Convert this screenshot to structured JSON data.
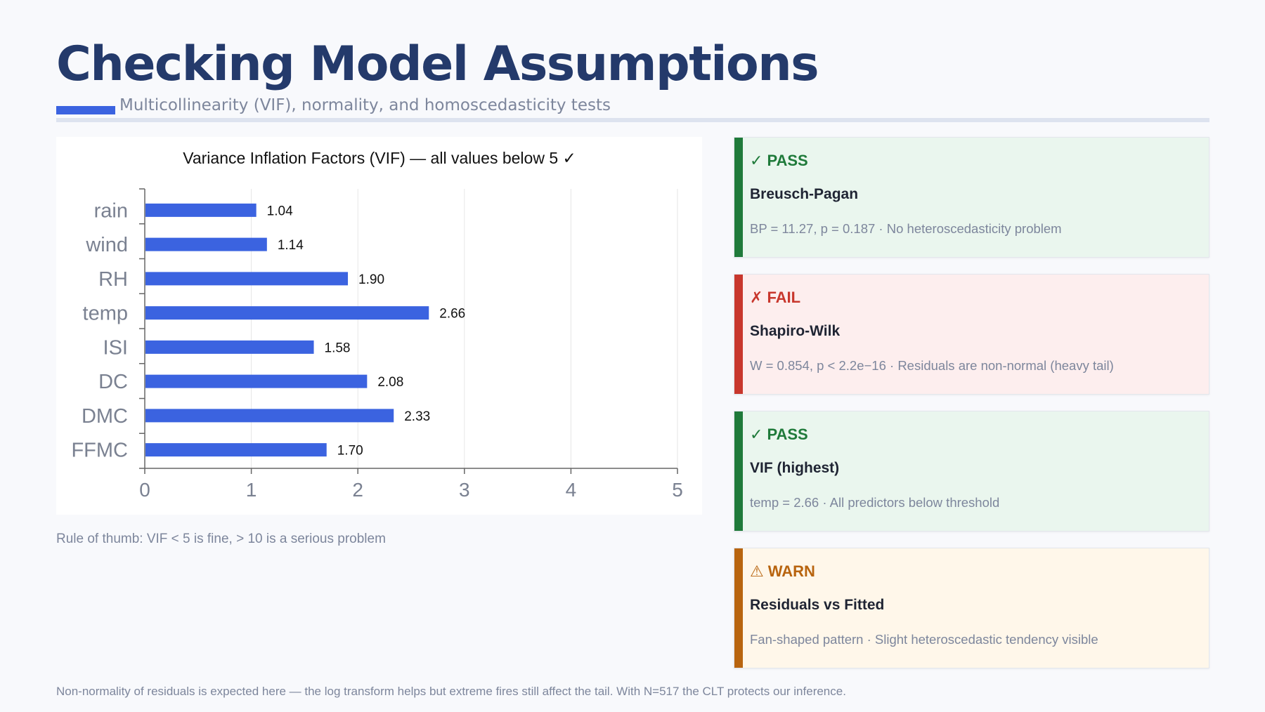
{
  "header": {
    "title": "Checking Model Assumptions",
    "subtitle": "Multicollinearity (VIF), normality, and homoscedasticity tests"
  },
  "chart_data": {
    "type": "bar",
    "orientation": "horizontal",
    "title": "Variance Inflation Factors (VIF) — all values below 5 ✓",
    "categories": [
      "rain",
      "wind",
      "RH",
      "temp",
      "ISI",
      "DC",
      "DMC",
      "FFMC"
    ],
    "values": [
      1.04,
      1.14,
      1.9,
      2.66,
      1.58,
      2.08,
      2.33,
      1.7
    ],
    "value_labels": [
      "1.04",
      "1.14",
      "1.90",
      "2.66",
      "1.58",
      "2.08",
      "2.33",
      "1.70"
    ],
    "xlim": [
      0,
      5
    ],
    "xticks": [
      "0",
      "1",
      "2",
      "3",
      "4",
      "5"
    ],
    "grid": "vertical",
    "bar_color": "#3b63e0"
  },
  "chart_note": "Rule of thumb: VIF < 5 is fine, > 10 is a serious problem",
  "checks": [
    {
      "symbol": "✓",
      "status": "PASS",
      "name": "Breusch-Pagan",
      "detail": "BP = 11.27, p = 0.187 · No heteroscedasticity problem",
      "accent": "#1f7a3a",
      "text_color": "#1f7a3a",
      "background": "#eaf6ee"
    },
    {
      "symbol": "✗",
      "status": "FAIL",
      "name": "Shapiro-Wilk",
      "detail": "W = 0.854, p < 2.2e−16 · Residuals are non-normal (heavy tail)",
      "accent": "#c8372d",
      "text_color": "#c8372d",
      "background": "#fdeeee"
    },
    {
      "symbol": "✓",
      "status": "PASS",
      "name": "VIF (highest)",
      "detail": "temp = 2.66 · All predictors below threshold",
      "accent": "#1f7a3a",
      "text_color": "#1f7a3a",
      "background": "#eaf6ee"
    },
    {
      "symbol": "⚠",
      "status": "WARN",
      "name": "Residuals vs Fitted",
      "detail": "Fan-shaped pattern · Slight heteroscedastic tendency visible",
      "accent": "#b8640f",
      "text_color": "#b8640f",
      "background": "#fff7ea"
    }
  ],
  "footnote": "Non-normality of residuals is expected here — the log transform helps but extreme fires still affect the tail. With N=517 the CLT protects our inference."
}
